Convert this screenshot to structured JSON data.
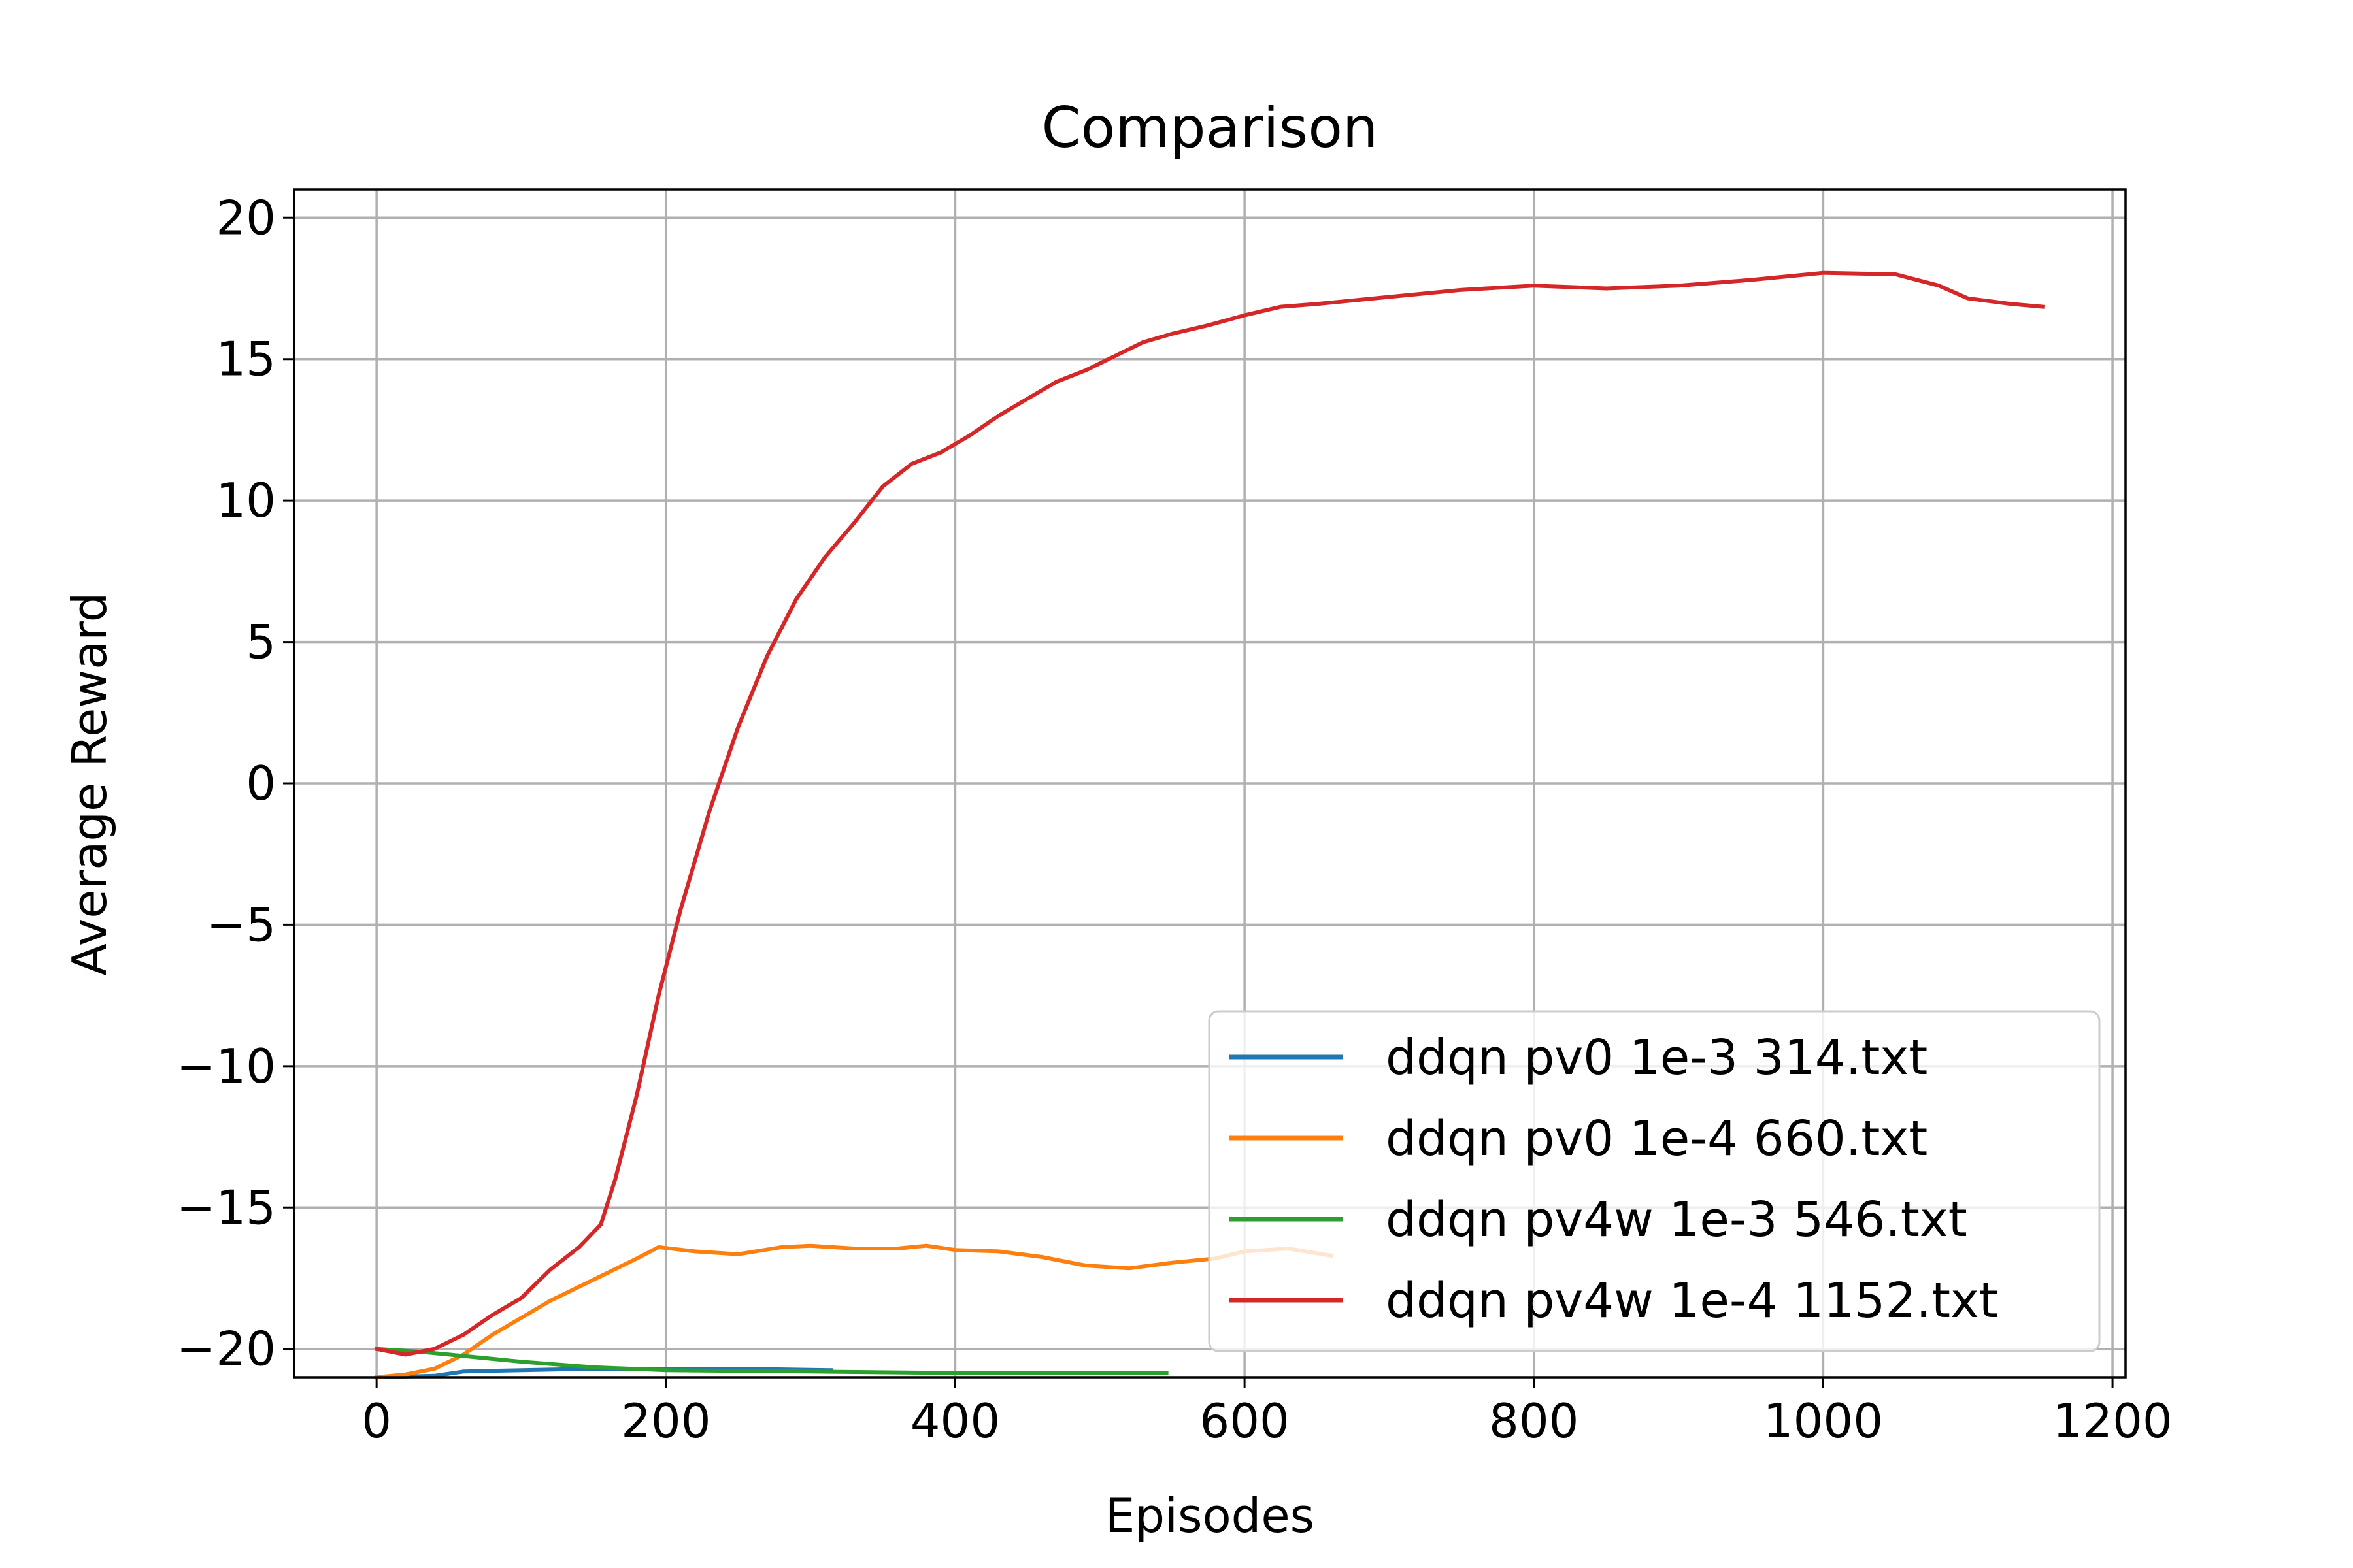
{
  "chart_data": {
    "type": "line",
    "title": "Comparison",
    "xlabel": "Episodes",
    "ylabel": "Average Reward",
    "xlim": [
      -57,
      1209
    ],
    "ylim": [
      -21,
      21
    ],
    "xticks": [
      0,
      200,
      400,
      600,
      800,
      1000,
      1200
    ],
    "yticks": [
      20,
      15,
      10,
      5,
      0,
      -5,
      -10,
      -15,
      -20
    ],
    "xtick_labels": [
      "0",
      "200",
      "400",
      "600",
      "800",
      "1000",
      "1200"
    ],
    "ytick_labels": [
      "20",
      "15",
      "10",
      "5",
      "0",
      "−5",
      "−10",
      "−15",
      "−20"
    ],
    "grid": true,
    "legend_position": "lower right",
    "series": [
      {
        "name": "ddqn pv0 1e-3 314.txt",
        "color": "#1f77b4",
        "points": [
          [
            0,
            -21
          ],
          [
            40,
            -20.95
          ],
          [
            60,
            -20.8
          ],
          [
            100,
            -20.75
          ],
          [
            150,
            -20.7
          ],
          [
            200,
            -20.7
          ],
          [
            250,
            -20.7
          ],
          [
            314,
            -20.75
          ]
        ]
      },
      {
        "name": "ddqn pv0 1e-4 660.txt",
        "color": "#ff7f0e",
        "points": [
          [
            0,
            -21
          ],
          [
            20,
            -20.9
          ],
          [
            40,
            -20.7
          ],
          [
            60,
            -20.2
          ],
          [
            80,
            -19.5
          ],
          [
            100,
            -18.9
          ],
          [
            120,
            -18.3
          ],
          [
            140,
            -17.8
          ],
          [
            160,
            -17.3
          ],
          [
            180,
            -16.8
          ],
          [
            195,
            -16.4
          ],
          [
            220,
            -16.55
          ],
          [
            250,
            -16.65
          ],
          [
            280,
            -16.4
          ],
          [
            300,
            -16.35
          ],
          [
            330,
            -16.45
          ],
          [
            360,
            -16.45
          ],
          [
            380,
            -16.35
          ],
          [
            400,
            -16.5
          ],
          [
            430,
            -16.55
          ],
          [
            460,
            -16.75
          ],
          [
            490,
            -17.05
          ],
          [
            520,
            -17.15
          ],
          [
            550,
            -16.95
          ],
          [
            580,
            -16.8
          ],
          [
            600,
            -16.55
          ],
          [
            630,
            -16.45
          ],
          [
            660,
            -16.7
          ]
        ]
      },
      {
        "name": "ddqn pv4w 1e-3 546.txt",
        "color": "#2ca02c",
        "points": [
          [
            0,
            -20
          ],
          [
            30,
            -20.1
          ],
          [
            60,
            -20.25
          ],
          [
            100,
            -20.45
          ],
          [
            150,
            -20.65
          ],
          [
            200,
            -20.75
          ],
          [
            300,
            -20.8
          ],
          [
            400,
            -20.85
          ],
          [
            546,
            -20.85
          ]
        ]
      },
      {
        "name": "ddqn pv4w 1e-4 1152.txt",
        "color": "#d62728",
        "points": [
          [
            0,
            -20
          ],
          [
            20,
            -20.2
          ],
          [
            40,
            -20
          ],
          [
            60,
            -19.5
          ],
          [
            80,
            -18.8
          ],
          [
            100,
            -18.2
          ],
          [
            120,
            -17.2
          ],
          [
            140,
            -16.4
          ],
          [
            155,
            -15.6
          ],
          [
            165,
            -14
          ],
          [
            180,
            -11
          ],
          [
            195,
            -7.5
          ],
          [
            210,
            -4.5
          ],
          [
            230,
            -1
          ],
          [
            250,
            2
          ],
          [
            270,
            4.5
          ],
          [
            290,
            6.5
          ],
          [
            310,
            8
          ],
          [
            330,
            9.2
          ],
          [
            350,
            10.5
          ],
          [
            370,
            11.3
          ],
          [
            390,
            11.7
          ],
          [
            410,
            12.3
          ],
          [
            430,
            13
          ],
          [
            450,
            13.6
          ],
          [
            470,
            14.2
          ],
          [
            490,
            14.6
          ],
          [
            510,
            15.1
          ],
          [
            530,
            15.6
          ],
          [
            550,
            15.9
          ],
          [
            575,
            16.2
          ],
          [
            600,
            16.55
          ],
          [
            625,
            16.85
          ],
          [
            650,
            16.95
          ],
          [
            700,
            17.2
          ],
          [
            750,
            17.45
          ],
          [
            800,
            17.6
          ],
          [
            850,
            17.5
          ],
          [
            900,
            17.6
          ],
          [
            950,
            17.8
          ],
          [
            1000,
            18.05
          ],
          [
            1050,
            18
          ],
          [
            1080,
            17.6
          ],
          [
            1100,
            17.15
          ],
          [
            1130,
            16.95
          ],
          [
            1152,
            16.85
          ]
        ]
      }
    ]
  }
}
